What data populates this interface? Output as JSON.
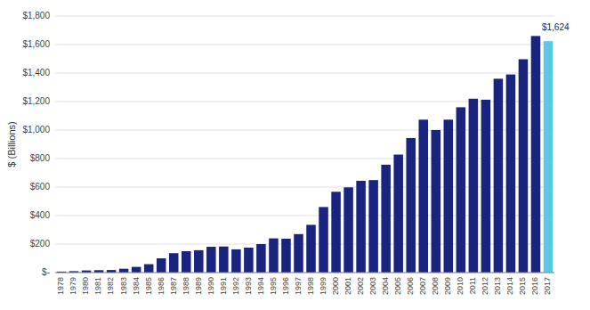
{
  "chart_data": {
    "type": "bar",
    "y_label": "$ (Billions)",
    "categories": [
      "1978",
      "1979",
      "1980",
      "1981",
      "1982",
      "1983",
      "1984",
      "1985",
      "1986",
      "1987",
      "1988",
      "1989",
      "1990",
      "1991",
      "1992",
      "1993",
      "1994",
      "1995",
      "1996",
      "1997",
      "1998",
      "1999",
      "2000",
      "2001",
      "2002",
      "2003",
      "2004",
      "2005",
      "2006",
      "2007",
      "2008",
      "2009",
      "2010",
      "2011",
      "2012",
      "2013",
      "2014",
      "2015",
      "2016",
      "2017"
    ],
    "values": [
      7,
      10,
      15,
      17,
      18,
      27,
      40,
      59,
      100,
      136,
      150,
      157,
      181,
      183,
      163,
      175,
      200,
      240,
      238,
      270,
      335,
      460,
      567,
      598,
      644,
      649,
      757,
      828,
      944,
      1073,
      1000,
      1073,
      1160,
      1220,
      1213,
      1360,
      1390,
      1497,
      1660,
      1624
    ],
    "colors": [
      "#1a237e",
      "#1a237e",
      "#1a237e",
      "#1a237e",
      "#1a237e",
      "#1a237e",
      "#1a237e",
      "#1a237e",
      "#1a237e",
      "#1a237e",
      "#1a237e",
      "#1a237e",
      "#1a237e",
      "#1a237e",
      "#1a237e",
      "#1a237e",
      "#1a237e",
      "#1a237e",
      "#1a237e",
      "#1a237e",
      "#1a237e",
      "#1a237e",
      "#1a237e",
      "#1a237e",
      "#1a237e",
      "#1a237e",
      "#1a237e",
      "#1a237e",
      "#1a237e",
      "#1a237e",
      "#1a237e",
      "#1a237e",
      "#1a237e",
      "#1a237e",
      "#1a237e",
      "#1a237e",
      "#1a237e",
      "#1a237e",
      "#1a237e",
      "#5bc8e8"
    ],
    "ylim": [
      0,
      1800
    ],
    "yticks": [
      {
        "value": 0,
        "label": "$-"
      },
      {
        "value": 200,
        "label": "$200"
      },
      {
        "value": 400,
        "label": "$400"
      },
      {
        "value": 600,
        "label": "$600"
      },
      {
        "value": 800,
        "label": "$800"
      },
      {
        "value": 1000,
        "label": "$1,000"
      },
      {
        "value": 1200,
        "label": "$1,200"
      },
      {
        "value": 1400,
        "label": "$1,400"
      },
      {
        "value": 1600,
        "label": "$1,600"
      },
      {
        "value": 1800,
        "label": "$1,800"
      }
    ],
    "grid": true,
    "annotations": [
      {
        "text": "$1,624",
        "x": "2016",
        "y": 1660,
        "color": "#1a237e"
      }
    ]
  }
}
